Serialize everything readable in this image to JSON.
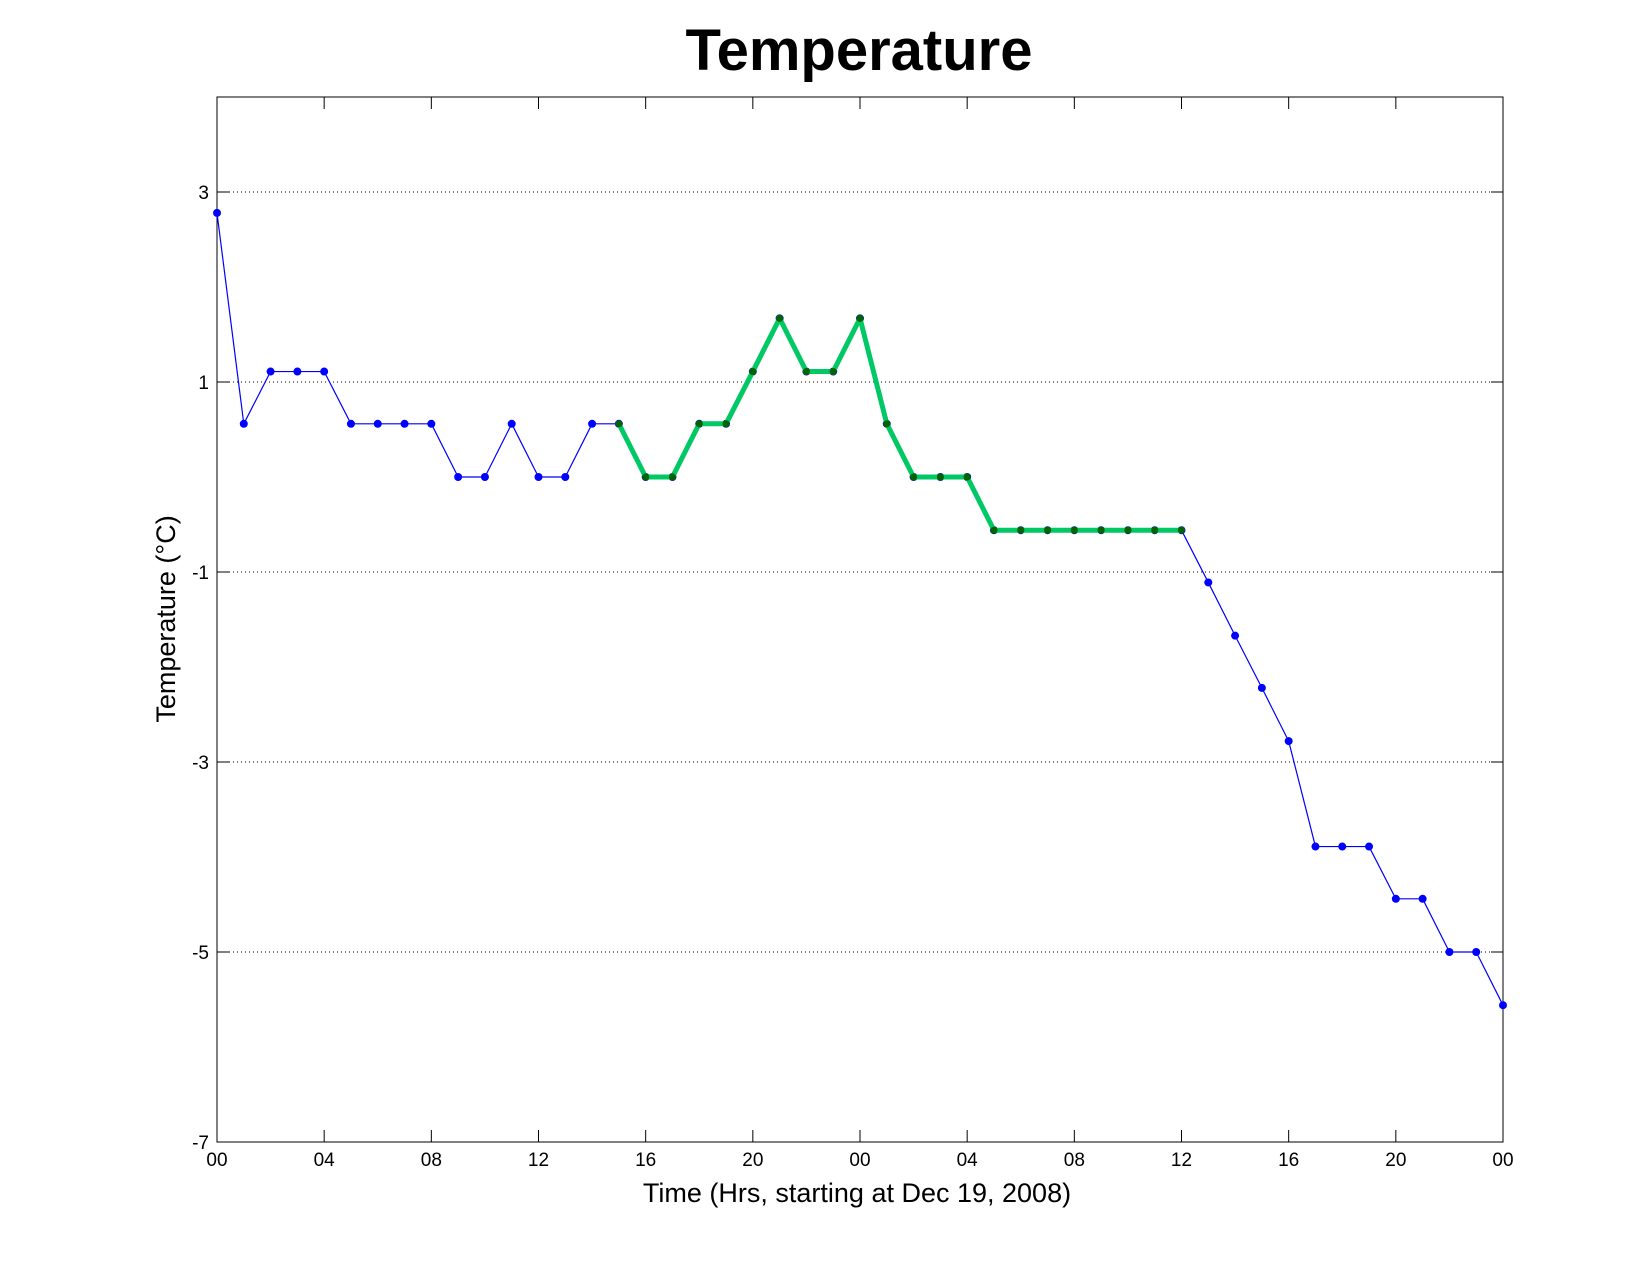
{
  "chart_data": {
    "type": "line",
    "title": "Temperature",
    "xlabel": "Time (Hrs, starting at Dec 19, 2008)",
    "ylabel": "Temperature (°C)",
    "x_unit": "hours",
    "xlim": [
      0,
      48
    ],
    "ylim": [
      -7,
      4
    ],
    "x_ticks": [
      0,
      4,
      8,
      12,
      16,
      20,
      24,
      28,
      32,
      36,
      40,
      44,
      48
    ],
    "x_tick_labels": [
      "00",
      "04",
      "08",
      "12",
      "16",
      "20",
      "00",
      "04",
      "08",
      "12",
      "16",
      "20",
      "00"
    ],
    "y_ticks": [
      -7,
      -5,
      -3,
      -1,
      1,
      3
    ],
    "y_tick_labels": [
      "-7",
      "-5",
      "-3",
      "-1",
      "1",
      "3"
    ],
    "grid": "horizontal dotted",
    "legend": "none",
    "series": [
      {
        "color": "#0000ff",
        "x": [
          0,
          1,
          2,
          3,
          4,
          5,
          6,
          7,
          8,
          9,
          10,
          11,
          12,
          13,
          14,
          15,
          16,
          17,
          18,
          19,
          20,
          21,
          22,
          23,
          24,
          25,
          26,
          27,
          28,
          29,
          30,
          31,
          32,
          33,
          34,
          35,
          36,
          37,
          38,
          39,
          40,
          41,
          42,
          43,
          44,
          45,
          46,
          47,
          48
        ],
        "values": [
          2.78,
          0.56,
          1.11,
          1.11,
          1.11,
          0.56,
          0.56,
          0.56,
          0.56,
          0.0,
          0.0,
          0.56,
          0.0,
          0.0,
          0.56,
          0.56,
          0.0,
          0.0,
          0.56,
          0.56,
          1.11,
          1.67,
          1.11,
          1.11,
          1.67,
          0.56,
          0.0,
          0.0,
          0.0,
          -0.56,
          -0.56,
          -0.56,
          -0.56,
          -0.56,
          -0.56,
          -0.56,
          -0.56,
          -1.11,
          -1.67,
          -2.22,
          -2.78,
          -3.89,
          -3.89,
          -3.89,
          -4.44,
          -4.44,
          -5.0,
          -5.0,
          -5.56
        ]
      },
      {
        "color": "#00c864",
        "marker_color": "#006400",
        "x": [
          15,
          16,
          17,
          18,
          19,
          20,
          21,
          22,
          23,
          24,
          25,
          26,
          27,
          28,
          29,
          30,
          31,
          32,
          33,
          34,
          35,
          36
        ],
        "values": [
          0.56,
          0.0,
          0.0,
          0.56,
          0.56,
          1.11,
          1.67,
          1.11,
          1.11,
          1.67,
          0.56,
          0.0,
          0.0,
          0.0,
          -0.56,
          -0.56,
          -0.56,
          -0.56,
          -0.56,
          -0.56,
          -0.56,
          -0.56
        ]
      }
    ]
  }
}
